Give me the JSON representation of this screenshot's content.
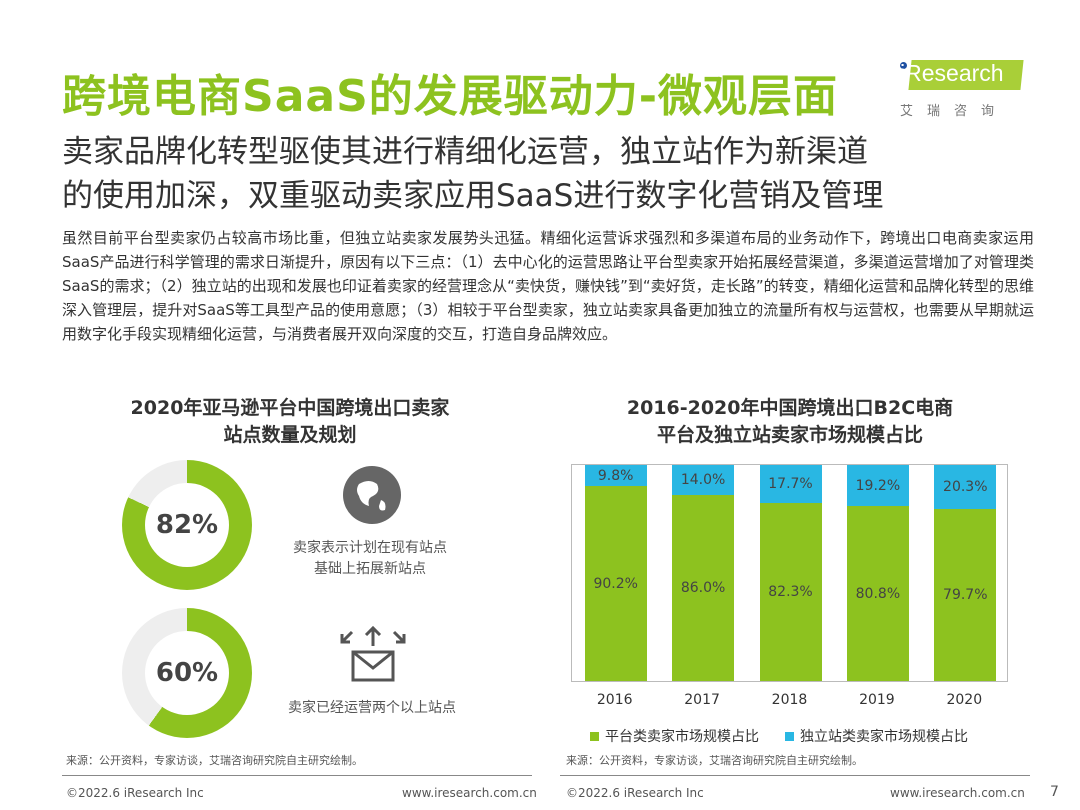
{
  "title": "跨境电商SaaS的发展驱动力-微观层面",
  "logo": {
    "brand_i": "i",
    "brand": "Research",
    "cn": "艾瑞咨询"
  },
  "subtitle": [
    "卖家品牌化转型驱使其进行精细化运营，独立站作为新渠道",
    "的使用加深，双重驱动卖家应用SaaS进行数字化营销及管理"
  ],
  "body": "虽然目前平台型卖家仍占较高市场比重，但独立站卖家发展势头迅猛。精细化运营诉求强烈和多渠道布局的业务动作下，跨境出口电商卖家运用SaaS产品进行科学管理的需求日渐提升，原因有以下三点：（1）去中心化的运营思路让平台型卖家开始拓展经营渠道，多渠道运营增加了对管理类SaaS的需求；（2）独立站的出现和发展也印证着卖家的经营理念从“卖快货，赚快钱”到“卖好货，走长路”的转变，精细化运营和品牌化转型的思维深入管理层，提升对SaaS等工具型产品的使用意愿；（3）相较于平台型卖家，独立站卖家具备更加独立的流量所有权与运营权，也需要从早期就运用数字化手段实现精细化运营，与消费者展开双向深度的交互，打造自身品牌效应。",
  "left": {
    "title": [
      "2020年亚马逊平台中国跨境出口卖家",
      "站点数量及规划"
    ],
    "stats": [
      {
        "value": 82,
        "label": "82%",
        "desc": [
          "卖家表示计划在现有站点",
          "基础上拓展新站点"
        ],
        "icon": "globe-icon"
      },
      {
        "value": 60,
        "label": "60%",
        "desc": [
          "卖家已经运营两个以上站点"
        ],
        "icon": "envelope-arrows-icon"
      }
    ],
    "source": "来源：公开资料，专家访谈，艾瑞咨询研究院自主研究绘制。"
  },
  "chart_data": {
    "type": "bar",
    "stacked": true,
    "title": [
      "2016-2020年中国跨境出口B2C电商",
      "平台及独立站卖家市场规模占比"
    ],
    "categories": [
      "2016",
      "2017",
      "2018",
      "2019",
      "2020"
    ],
    "series": [
      {
        "name": "平台类卖家市场规模占比",
        "values": [
          90.2,
          86.0,
          82.3,
          80.8,
          79.7
        ],
        "labels": [
          "90.2%",
          "86.0%",
          "82.3%",
          "80.8%",
          "79.7%"
        ],
        "color": "#8dc21f"
      },
      {
        "name": "独立站类卖家市场规模占比",
        "values": [
          9.8,
          14.0,
          17.7,
          19.2,
          20.3
        ],
        "labels": [
          "9.8%",
          "14.0%",
          "17.7%",
          "19.2%",
          "20.3%"
        ],
        "color": "#29b7e3"
      }
    ],
    "ylim": [
      0,
      100
    ],
    "grid": false,
    "legend": "bottom",
    "source": "来源：公开资料，专家访谈，艾瑞咨询研究院自主研究绘制。"
  },
  "footer": {
    "copyright": "©2022.6 iResearch Inc",
    "url": "www.iresearch.com.cn",
    "page": "7"
  },
  "colors": {
    "green": "#8dc21f",
    "cyan": "#29b7e3",
    "ring_bg": "#eeeeee"
  }
}
